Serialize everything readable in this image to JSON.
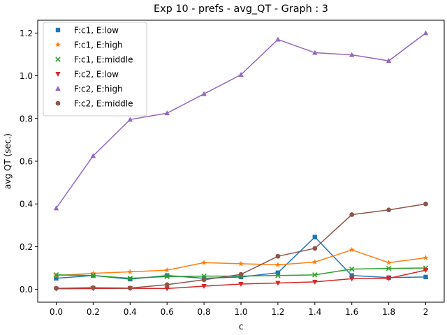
{
  "chart_data": {
    "type": "line",
    "title": "Exp 10 - prefs - avg_QT - Graph : 3",
    "xlabel": "c",
    "ylabel": "avg QT (sec.)",
    "xlim": [
      -0.1,
      2.1
    ],
    "ylim": [
      -0.06,
      1.26
    ],
    "x_ticks": [
      "0.0",
      "0.2",
      "0.4",
      "0.6",
      "0.8",
      "1.0",
      "1.2",
      "1.4",
      "1.6",
      "1.8",
      "2"
    ],
    "y_ticks": [
      "0.0",
      "0.2",
      "0.4",
      "0.6",
      "0.8",
      "1.0",
      "1.2"
    ],
    "legend_position": "top-left",
    "grid": false,
    "x": [
      0.0,
      0.2,
      0.4,
      0.6,
      0.8,
      1.0,
      1.2,
      1.4,
      1.6,
      1.8,
      2.0
    ],
    "series": [
      {
        "name": "F:c1, E:low",
        "marker": "square",
        "color": "#1f77b4",
        "values": [
          0.052,
          0.065,
          0.048,
          0.065,
          0.052,
          0.058,
          0.078,
          0.245,
          0.065,
          0.055,
          0.058
        ]
      },
      {
        "name": "F:c1, E:high",
        "marker": "star",
        "color": "#ff7f0e",
        "values": [
          0.065,
          0.075,
          0.082,
          0.09,
          0.125,
          0.12,
          0.115,
          0.128,
          0.185,
          0.125,
          0.148
        ]
      },
      {
        "name": "F:c1, E:middle",
        "marker": "x",
        "color": "#2ca02c",
        "values": [
          0.068,
          0.065,
          0.052,
          0.06,
          0.062,
          0.062,
          0.065,
          0.068,
          0.095,
          0.098,
          0.1
        ]
      },
      {
        "name": "F:c2, E:low",
        "marker": "triangle-down",
        "color": "#d62728",
        "values": [
          0.003,
          0.004,
          0.005,
          0.004,
          0.015,
          0.025,
          0.03,
          0.035,
          0.05,
          0.052,
          0.09
        ]
      },
      {
        "name": "F:c2, E:high",
        "marker": "triangle-up",
        "color": "#9467bd",
        "values": [
          0.38,
          0.625,
          0.795,
          0.825,
          0.915,
          1.005,
          1.17,
          1.108,
          1.098,
          1.07,
          1.2
        ]
      },
      {
        "name": "F:c2, E:middle",
        "marker": "circle",
        "color": "#8c564b",
        "values": [
          0.005,
          0.008,
          0.006,
          0.022,
          0.045,
          0.07,
          0.155,
          0.192,
          0.35,
          0.372,
          0.4
        ]
      }
    ]
  }
}
